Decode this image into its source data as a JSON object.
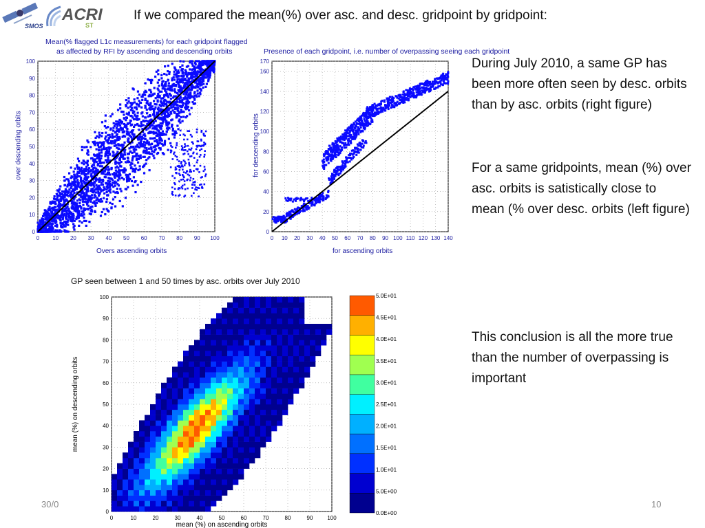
{
  "slide": {
    "title": "If we compared the mean(%) over asc. and desc. gridpoint by gridpoint:",
    "logo_smos": "SMOS",
    "logo_acri": "ACRI",
    "logo_acri_sub": "ST",
    "paragraphs": [
      "During July 2010, a same GP has been more often seen by desc. orbits than by asc. orbits (right figure)",
      "For a same gridpoints, mean (%) over asc. orbits is satistically close to mean (% over desc. orbits (left figure)",
      "This conclusion is all the more true than the number of overpassing is important"
    ],
    "footer_date": "30/0",
    "page_number": "10",
    "colors": {
      "scatter_blue": "#0a0aff",
      "axis_text": "#1a1aa0"
    }
  },
  "chart_data": [
    {
      "type": "scatter",
      "title_line1": "Mean(% flagged L1c measurements) for each gridpoint flagged",
      "title_line2": "as affected by RFI by ascending and descending orbits",
      "xlabel": "Overs ascending orbits",
      "ylabel": "over descending orbits",
      "xlim": [
        0,
        100
      ],
      "ylim": [
        0,
        100
      ],
      "xticks": [
        0,
        10,
        20,
        30,
        40,
        50,
        60,
        70,
        80,
        90,
        100
      ],
      "yticks": [
        0,
        10,
        20,
        30,
        40,
        50,
        60,
        70,
        80,
        90,
        100
      ],
      "reference_line": [
        [
          0,
          0
        ],
        [
          100,
          100
        ]
      ],
      "grid": true,
      "color": "#0a0aff"
    },
    {
      "type": "scatter",
      "title": "Presence of each gridpoint, i.e. number of overpassing seeing each gridpoint",
      "xlabel": "for ascending orbits",
      "ylabel": "for descending orbits",
      "xlim": [
        0,
        140
      ],
      "ylim": [
        0,
        170
      ],
      "xticks": [
        0,
        10,
        20,
        30,
        40,
        50,
        60,
        70,
        80,
        90,
        100,
        110,
        120,
        130,
        140
      ],
      "yticks": [
        0,
        20,
        40,
        60,
        80,
        100,
        120,
        140,
        160,
        170
      ],
      "reference_line": [
        [
          0,
          0
        ],
        [
          140,
          140
        ]
      ],
      "grid": true,
      "color": "#0a0aff"
    },
    {
      "type": "heatmap",
      "caption": "GP seen between 1 and 50 times by asc. orbits over July 2010",
      "xlabel": "mean (%) on ascending orbits",
      "ylabel": "mean (%) on descending orbits",
      "xlim": [
        0,
        100
      ],
      "ylim": [
        0,
        100
      ],
      "xticks": [
        0,
        10,
        20,
        30,
        40,
        50,
        60,
        70,
        80,
        90,
        100
      ],
      "yticks": [
        0,
        10,
        20,
        30,
        40,
        50,
        60,
        70,
        80,
        90,
        100
      ],
      "grid": true,
      "colorbar": {
        "labels": [
          "0.0E+00",
          "5.0E+00",
          "1.0E+01",
          "1.5E+01",
          "2.0E+01",
          "2.5E+01",
          "3.0E+01",
          "3.5E+01",
          "4.0E+01",
          "4.5E+01",
          "5.0E+01"
        ],
        "colors": [
          "#00008f",
          "#0000d0",
          "#0030ff",
          "#0070ff",
          "#00b0ff",
          "#00f0ff",
          "#40ffa0",
          "#a0ff50",
          "#ffff00",
          "#ffb000",
          "#ff5a00"
        ]
      }
    }
  ]
}
